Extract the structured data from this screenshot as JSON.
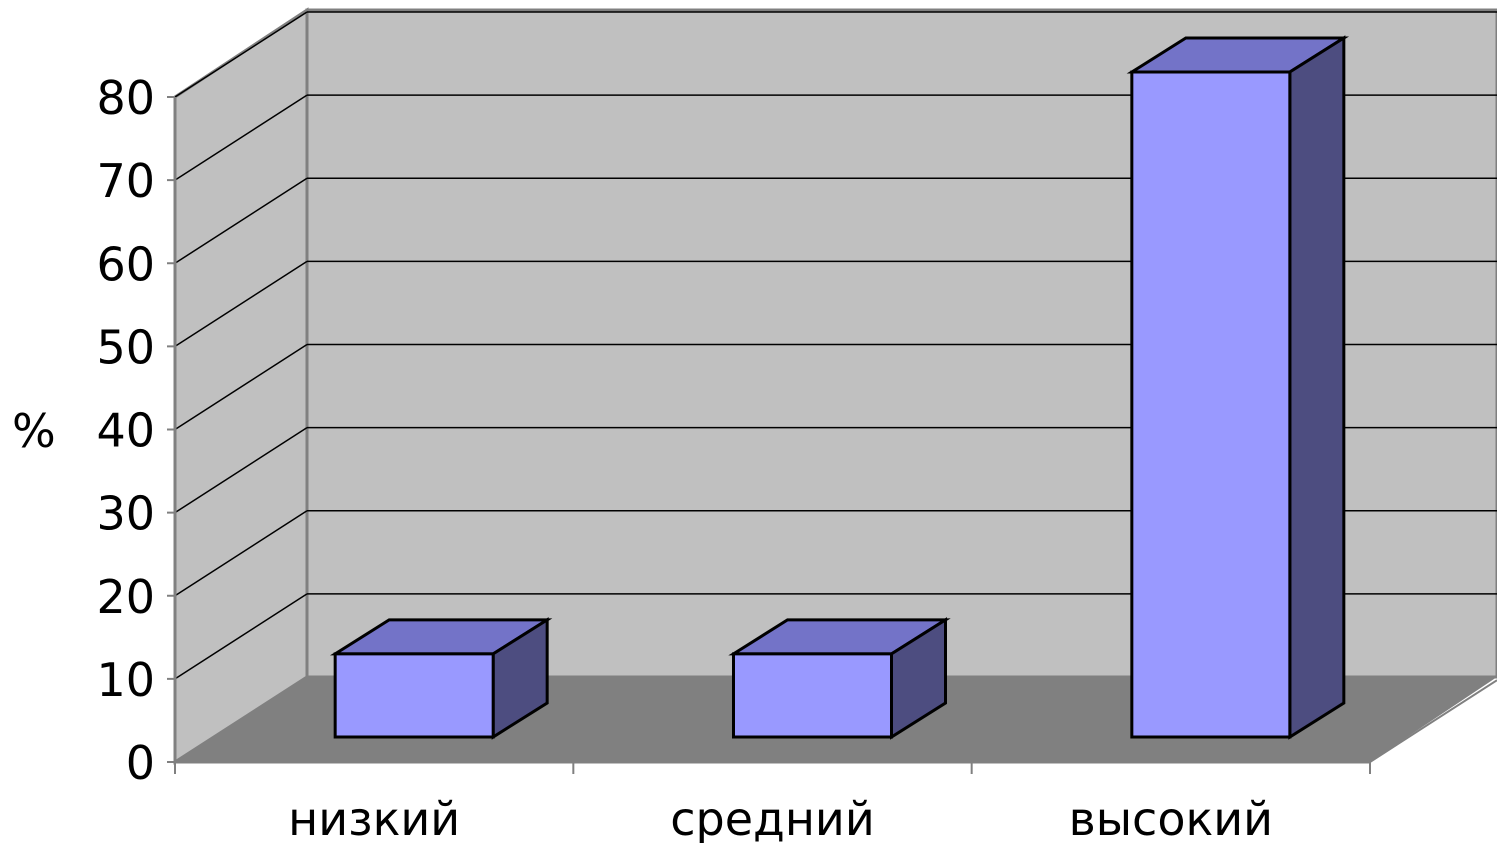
{
  "chart_data": {
    "type": "bar",
    "style": "3d-column",
    "title": "",
    "xlabel": "",
    "ylabel": "%",
    "ylim": [
      0,
      80
    ],
    "yticks": [
      0,
      10,
      20,
      30,
      40,
      50,
      60,
      70,
      80
    ],
    "yticks_labels": [
      "0",
      "10",
      "20",
      "30",
      "40",
      "50",
      "60",
      "70",
      "80"
    ],
    "categories": [
      "низкий",
      "средний",
      "высокий"
    ],
    "series": [
      {
        "values": [
          10,
          10,
          80
        ]
      }
    ],
    "grid": true,
    "legend": "none"
  },
  "colors": {
    "back_wall": "#c0c0c0",
    "floor": "#808080",
    "bar_front": "#9999ff",
    "bar_top": "#7373c8",
    "bar_side": "#4d4d80",
    "gridline": "#000000",
    "wall_edge": "#808080"
  }
}
